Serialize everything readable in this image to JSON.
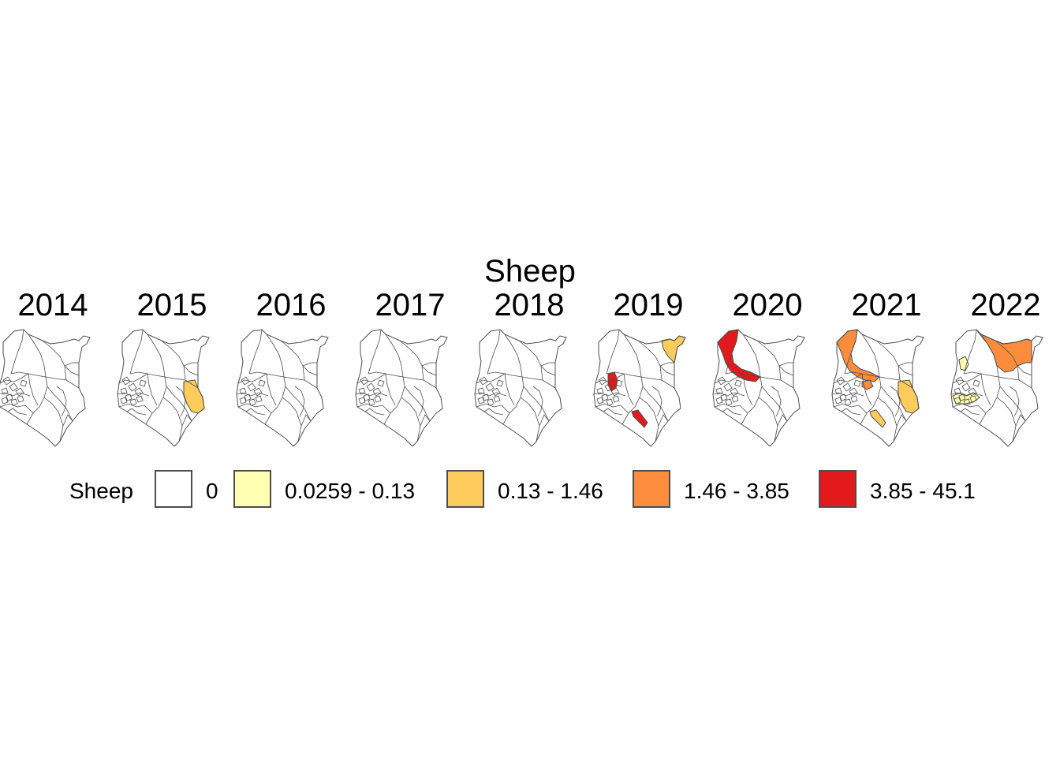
{
  "title": "Sheep",
  "legend": {
    "title": "Sheep",
    "classes": [
      {
        "label": "0",
        "color": "#ffffff"
      },
      {
        "label": "0.0259 - 0.13",
        "color": "#ffffb2"
      },
      {
        "label": "0.13 - 1.46",
        "color": "#fecc5c"
      },
      {
        "label": "1.46 - 3.85",
        "color": "#fd8d3c"
      },
      {
        "label": "3.85 - 45.1",
        "color": "#e31a1c"
      }
    ]
  },
  "panels": [
    {
      "year": "2014",
      "highlights": []
    },
    {
      "year": "2015",
      "highlights": [
        {
          "region": "east",
          "class": 2
        }
      ]
    },
    {
      "year": "2016",
      "highlights": []
    },
    {
      "year": "2017",
      "highlights": []
    },
    {
      "year": "2018",
      "highlights": []
    },
    {
      "year": "2019",
      "highlights": [
        {
          "region": "northeast-tip",
          "class": 2
        },
        {
          "region": "west-central",
          "class": 4
        },
        {
          "region": "south-west",
          "class": 4
        }
      ]
    },
    {
      "year": "2020",
      "highlights": [
        {
          "region": "northwest",
          "class": 4
        }
      ]
    },
    {
      "year": "2021",
      "highlights": [
        {
          "region": "northwest",
          "class": 3
        },
        {
          "region": "central-small",
          "class": 3
        },
        {
          "region": "east",
          "class": 2
        },
        {
          "region": "south-west",
          "class": 2
        }
      ]
    },
    {
      "year": "2022",
      "highlights": [
        {
          "region": "north",
          "class": 3
        },
        {
          "region": "west-small",
          "class": 1
        },
        {
          "region": "west-lower",
          "class": 1
        }
      ]
    }
  ]
}
